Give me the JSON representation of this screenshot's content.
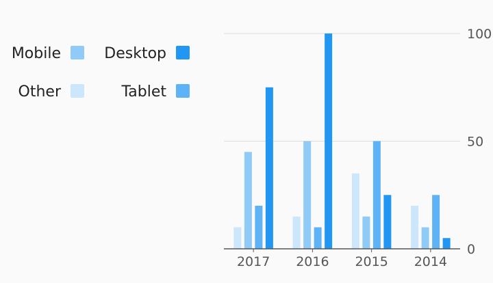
{
  "chart_data": {
    "type": "bar",
    "categories": [
      "2017",
      "2016",
      "2015",
      "2014"
    ],
    "series": [
      {
        "name": "Other",
        "color": "#cce6fb",
        "values": [
          10,
          15,
          35,
          20
        ]
      },
      {
        "name": "Mobile",
        "color": "#90cbf8",
        "values": [
          45,
          50,
          15,
          10
        ]
      },
      {
        "name": "Tablet",
        "color": "#5eb3f6",
        "values": [
          20,
          10,
          50,
          25
        ]
      },
      {
        "name": "Desktop",
        "color": "#2196f3",
        "values": [
          75,
          100,
          25,
          5
        ]
      }
    ],
    "legend_order": [
      "Mobile",
      "Desktop",
      "Other",
      "Tablet"
    ],
    "legend_position": "left",
    "ylim": [
      0,
      100
    ],
    "y_ticks": [
      0,
      50,
      100
    ],
    "y_axis_side": "right",
    "grid": true,
    "title": "",
    "xlabel": "",
    "ylabel": ""
  }
}
